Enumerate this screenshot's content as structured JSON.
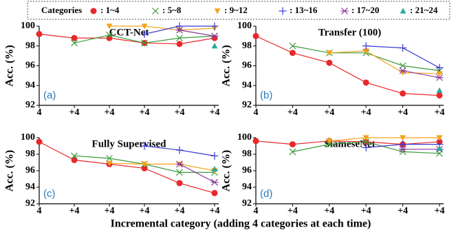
{
  "chart_data": [
    {
      "type": "line",
      "title": "CCT-Net",
      "annotation": "(a)",
      "ylabel": "Acc. (%)",
      "legend_title": "Categories",
      "categories": [
        "4",
        "+4",
        "+4",
        "+4",
        "+4",
        "+4"
      ],
      "ylim": [
        92,
        100
      ],
      "yticks": [
        92,
        94,
        96,
        98,
        100
      ],
      "series": [
        {
          "name": ": 1~4",
          "color": "#e8282b",
          "marker": "o",
          "values": [
            99.2,
            98.8,
            98.8,
            98.3,
            98.2,
            98.8
          ]
        },
        {
          "name": ": 5~8",
          "color": "#3a9a3a",
          "marker": "x",
          "values": [
            null,
            98.3,
            99.1,
            98.3,
            98.8,
            99.0
          ]
        },
        {
          "name": ": 9~12",
          "color": "#f5a31a",
          "marker": "v",
          "values": [
            null,
            null,
            100,
            100,
            99.6,
            99.8
          ]
        },
        {
          "name": ": 13~16",
          "color": "#3a3ad0",
          "marker": "+",
          "values": [
            null,
            null,
            null,
            99.2,
            100,
            100
          ]
        },
        {
          "name": ": 17~20",
          "color": "#8a3a9a",
          "marker": "*",
          "values": [
            null,
            null,
            null,
            null,
            99.6,
            99.0
          ]
        },
        {
          "name": ": 21~24",
          "color": "#2aa89a",
          "marker": "^",
          "values": [
            null,
            null,
            null,
            null,
            null,
            98.0
          ]
        }
      ]
    },
    {
      "type": "line",
      "title": "Transfer (100)",
      "annotation": "(b)",
      "ylabel": "Acc. (%)",
      "categories": [
        "4",
        "+4",
        "+4",
        "+4",
        "+4",
        "+4"
      ],
      "ylim": [
        92,
        100
      ],
      "yticks": [
        92,
        94,
        96,
        98,
        100
      ],
      "series": [
        {
          "color": "#e8282b",
          "marker": "o",
          "values": [
            99.0,
            97.3,
            96.3,
            94.3,
            93.2,
            93.0
          ]
        },
        {
          "color": "#3a9a3a",
          "marker": "x",
          "values": [
            null,
            98.0,
            97.3,
            97.3,
            96.0,
            95.5
          ]
        },
        {
          "color": "#f5a31a",
          "marker": "v",
          "values": [
            null,
            null,
            97.3,
            97.5,
            95.3,
            95.2
          ]
        },
        {
          "color": "#3a3ad0",
          "marker": "+",
          "values": [
            null,
            null,
            null,
            98.0,
            97.8,
            95.8
          ]
        },
        {
          "color": "#8a3a9a",
          "marker": "*",
          "values": [
            null,
            null,
            null,
            null,
            95.5,
            94.8
          ]
        },
        {
          "color": "#2aa89a",
          "marker": "^",
          "values": [
            null,
            null,
            null,
            null,
            null,
            93.5
          ]
        }
      ]
    },
    {
      "type": "line",
      "title": "Fully Supervised",
      "annotation": "(c)",
      "ylabel": "Acc. (%)",
      "xlabel": "Incremental category (adding 4 categories at each time)",
      "categories": [
        "4",
        "+4",
        "+4",
        "+4",
        "+4",
        "+4"
      ],
      "ylim": [
        92,
        100
      ],
      "yticks": [
        92,
        94,
        96,
        98,
        100
      ],
      "series": [
        {
          "color": "#e8282b",
          "marker": "o",
          "values": [
            99.5,
            97.3,
            96.8,
            96.3,
            94.5,
            93.3
          ]
        },
        {
          "color": "#3a9a3a",
          "marker": "x",
          "values": [
            null,
            97.8,
            97.5,
            96.8,
            95.8,
            95.8
          ]
        },
        {
          "color": "#f5a31a",
          "marker": "v",
          "values": [
            null,
            null,
            96.9,
            96.8,
            96.8,
            96.0
          ]
        },
        {
          "color": "#3a3ad0",
          "marker": "+",
          "values": [
            null,
            null,
            null,
            99.0,
            98.5,
            97.8
          ]
        },
        {
          "color": "#8a3a9a",
          "marker": "*",
          "values": [
            null,
            null,
            null,
            null,
            96.8,
            94.6
          ]
        },
        {
          "color": "#2aa89a",
          "marker": "^",
          "values": [
            null,
            null,
            null,
            null,
            null,
            96.2
          ]
        }
      ]
    },
    {
      "type": "line",
      "title": "SiameseNet",
      "annotation": "(d)",
      "ylabel": "Acc. (%)",
      "categories": [
        "4",
        "+4",
        "+4",
        "+4",
        "+4",
        "+4"
      ],
      "ylim": [
        92,
        100
      ],
      "yticks": [
        92,
        94,
        96,
        98,
        100
      ],
      "series": [
        {
          "color": "#e8282b",
          "marker": "o",
          "values": [
            99.6,
            99.2,
            99.6,
            99.5,
            99.2,
            99.5
          ]
        },
        {
          "color": "#3a9a3a",
          "marker": "x",
          "values": [
            null,
            98.3,
            99.2,
            99.5,
            98.3,
            98.1
          ]
        },
        {
          "color": "#f5a31a",
          "marker": "v",
          "values": [
            null,
            null,
            99.6,
            100,
            100,
            100
          ]
        },
        {
          "color": "#3a3ad0",
          "marker": "+",
          "values": [
            null,
            null,
            null,
            98.8,
            99.2,
            99.2
          ]
        },
        {
          "color": "#8a3a9a",
          "marker": "*",
          "values": [
            null,
            null,
            null,
            null,
            98.6,
            98.6
          ]
        },
        {
          "color": "#2aa89a",
          "marker": "^",
          "values": [
            null,
            null,
            null,
            null,
            null,
            98.7
          ]
        }
      ]
    }
  ]
}
